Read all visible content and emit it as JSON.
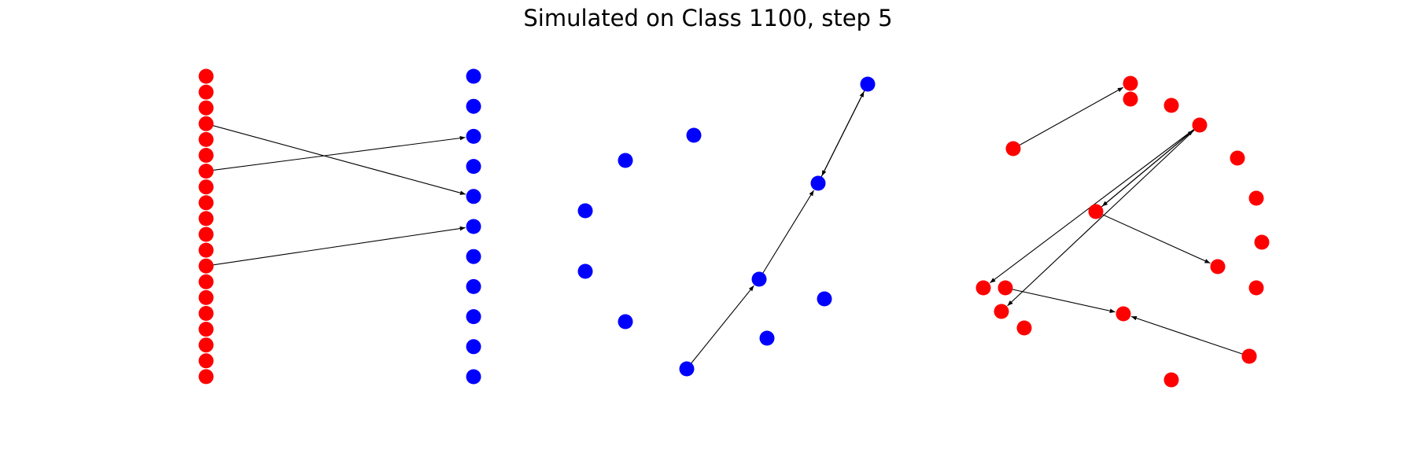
{
  "title": "Simulated on Class 1100, step 5",
  "colors": {
    "red": "#ff0000",
    "blue": "#0000ff",
    "edge": "#000000"
  },
  "panels": [
    {
      "name": "bipartite-panel",
      "nodes": [
        {
          "id": "L0",
          "c": "red"
        },
        {
          "id": "L1",
          "c": "red"
        },
        {
          "id": "L2",
          "c": "red"
        },
        {
          "id": "L3",
          "c": "red"
        },
        {
          "id": "L4",
          "c": "red"
        },
        {
          "id": "L5",
          "c": "red"
        },
        {
          "id": "L6",
          "c": "red"
        },
        {
          "id": "L7",
          "c": "red"
        },
        {
          "id": "L8",
          "c": "red"
        },
        {
          "id": "L9",
          "c": "red"
        },
        {
          "id": "L10",
          "c": "red"
        },
        {
          "id": "L11",
          "c": "red"
        },
        {
          "id": "L12",
          "c": "red"
        },
        {
          "id": "L13",
          "c": "red"
        },
        {
          "id": "L14",
          "c": "red"
        },
        {
          "id": "L15",
          "c": "red"
        },
        {
          "id": "L16",
          "c": "red"
        },
        {
          "id": "L17",
          "c": "red"
        },
        {
          "id": "L18",
          "c": "red"
        },
        {
          "id": "L19",
          "c": "red"
        },
        {
          "id": "R0",
          "c": "blue"
        },
        {
          "id": "R1",
          "c": "blue"
        },
        {
          "id": "R2",
          "c": "blue"
        },
        {
          "id": "R3",
          "c": "blue"
        },
        {
          "id": "R4",
          "c": "blue"
        },
        {
          "id": "R5",
          "c": "blue"
        },
        {
          "id": "R6",
          "c": "blue"
        },
        {
          "id": "R7",
          "c": "blue"
        },
        {
          "id": "R8",
          "c": "blue"
        },
        {
          "id": "R9",
          "c": "blue"
        },
        {
          "id": "R10",
          "c": "blue"
        }
      ],
      "edges": [
        {
          "from": "L3",
          "to": "R4"
        },
        {
          "from": "L6",
          "to": "R2"
        },
        {
          "from": "L12",
          "to": "R5"
        }
      ]
    },
    {
      "name": "blue-circle-panel",
      "nodes": [
        {
          "id": "B0",
          "c": "blue"
        },
        {
          "id": "B1",
          "c": "blue"
        },
        {
          "id": "B2",
          "c": "blue"
        },
        {
          "id": "B3",
          "c": "blue"
        },
        {
          "id": "B4",
          "c": "blue"
        },
        {
          "id": "B5",
          "c": "blue"
        },
        {
          "id": "B6",
          "c": "blue"
        },
        {
          "id": "B7",
          "c": "blue"
        },
        {
          "id": "B8",
          "c": "blue"
        },
        {
          "id": "B9",
          "c": "blue"
        },
        {
          "id": "B10",
          "c": "blue"
        }
      ],
      "edges": [
        {
          "from": "B10",
          "to": "B7"
        },
        {
          "from": "B7",
          "to": "B9"
        },
        {
          "from": "B9",
          "to": "B0"
        },
        {
          "from": "B0",
          "to": "B9"
        }
      ]
    },
    {
      "name": "red-circle-panel",
      "nodes": [
        {
          "id": "C0",
          "c": "red"
        },
        {
          "id": "C1",
          "c": "red"
        },
        {
          "id": "C2",
          "c": "red"
        },
        {
          "id": "C3",
          "c": "red"
        },
        {
          "id": "C4",
          "c": "red"
        },
        {
          "id": "C5",
          "c": "red"
        },
        {
          "id": "C6",
          "c": "red"
        },
        {
          "id": "C7",
          "c": "red"
        },
        {
          "id": "C8",
          "c": "red"
        },
        {
          "id": "C9",
          "c": "red"
        },
        {
          "id": "C10",
          "c": "red"
        },
        {
          "id": "C11",
          "c": "red"
        },
        {
          "id": "C12",
          "c": "red"
        },
        {
          "id": "C13",
          "c": "red"
        },
        {
          "id": "C14",
          "c": "red"
        },
        {
          "id": "C15",
          "c": "red"
        },
        {
          "id": "C16",
          "c": "red"
        },
        {
          "id": "C17",
          "c": "red"
        },
        {
          "id": "C18",
          "c": "red"
        }
      ],
      "edges": [
        {
          "from": "C14",
          "to": "C0"
        },
        {
          "from": "C3",
          "to": "C15"
        },
        {
          "from": "C15",
          "to": "C3"
        },
        {
          "from": "C3",
          "to": "C17"
        },
        {
          "from": "C15",
          "to": "C10"
        },
        {
          "from": "C15",
          "to": "C12"
        },
        {
          "from": "C11",
          "to": "C16"
        },
        {
          "from": "C18",
          "to": "C16"
        }
      ]
    }
  ]
}
